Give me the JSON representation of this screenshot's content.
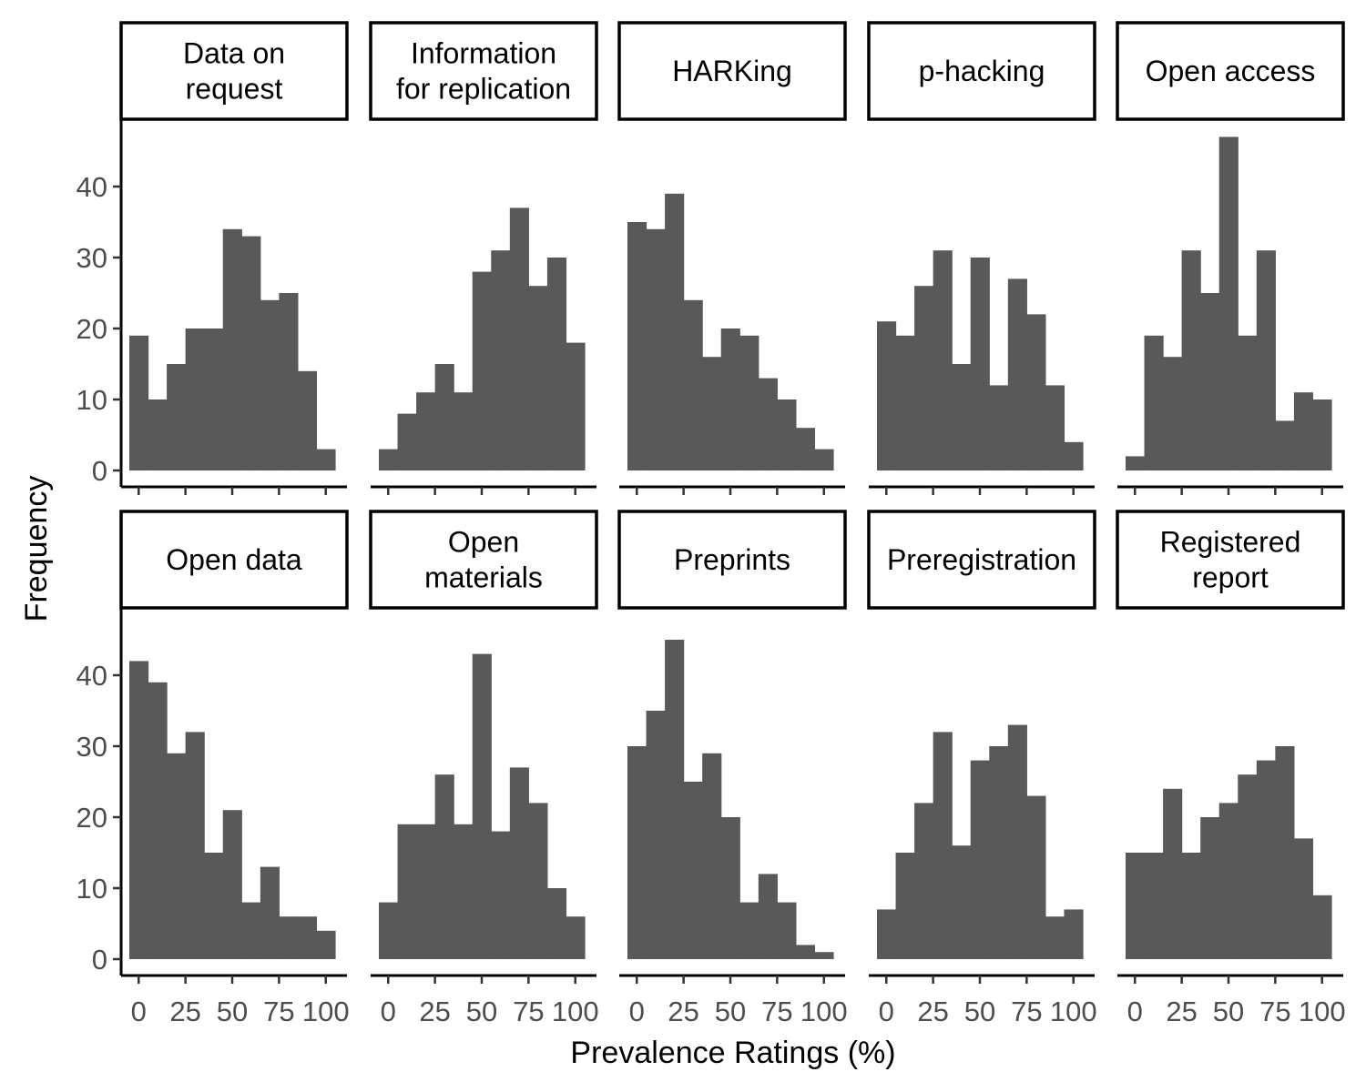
{
  "chart_data": {
    "type": "bar",
    "subtype": "faceted-histogram",
    "xlabel": "Prevalence Ratings (%)",
    "ylabel": "Frequency",
    "x_ticks": [
      0,
      25,
      50,
      75,
      100
    ],
    "y_ticks": [
      0,
      10,
      20,
      30,
      40
    ],
    "bin_width": 10,
    "bin_centers": [
      0,
      10,
      20,
      30,
      40,
      50,
      60,
      70,
      80,
      90,
      100
    ],
    "xlim": [
      -5,
      105
    ],
    "ylim": [
      0,
      47
    ],
    "bar_color": "#595959",
    "layout": {
      "rows": 2,
      "cols": 5
    },
    "panels": [
      {
        "title_lines": [
          "Data on",
          "request"
        ],
        "values": [
          19,
          10,
          15,
          20,
          20,
          34,
          33,
          24,
          25,
          14,
          3
        ]
      },
      {
        "title_lines": [
          "Information",
          "for replication"
        ],
        "values": [
          3,
          8,
          11,
          15,
          11,
          28,
          31,
          37,
          26,
          30,
          18
        ]
      },
      {
        "title_lines": [
          "HARKing"
        ],
        "values": [
          35,
          34,
          39,
          24,
          16,
          20,
          19,
          13,
          10,
          6,
          3
        ]
      },
      {
        "title_lines": [
          "p-hacking"
        ],
        "values": [
          21,
          19,
          26,
          31,
          15,
          30,
          12,
          27,
          22,
          12,
          4
        ]
      },
      {
        "title_lines": [
          "Open access"
        ],
        "values": [
          2,
          19,
          16,
          31,
          25,
          47,
          19,
          31,
          7,
          11,
          10
        ]
      },
      {
        "title_lines": [
          "Open data"
        ],
        "values": [
          42,
          39,
          29,
          32,
          15,
          21,
          8,
          13,
          6,
          6,
          4
        ]
      },
      {
        "title_lines": [
          "Open",
          "materials"
        ],
        "values": [
          8,
          19,
          19,
          26,
          19,
          43,
          18,
          27,
          22,
          10,
          6
        ]
      },
      {
        "title_lines": [
          "Preprints"
        ],
        "values": [
          30,
          35,
          45,
          25,
          29,
          20,
          8,
          12,
          8,
          2,
          1
        ]
      },
      {
        "title_lines": [
          "Preregistration"
        ],
        "values": [
          7,
          15,
          22,
          32,
          16,
          28,
          30,
          33,
          23,
          6,
          7
        ]
      },
      {
        "title_lines": [
          "Registered",
          "report"
        ],
        "values": [
          15,
          15,
          24,
          15,
          20,
          22,
          26,
          28,
          30,
          17,
          9
        ]
      }
    ]
  }
}
